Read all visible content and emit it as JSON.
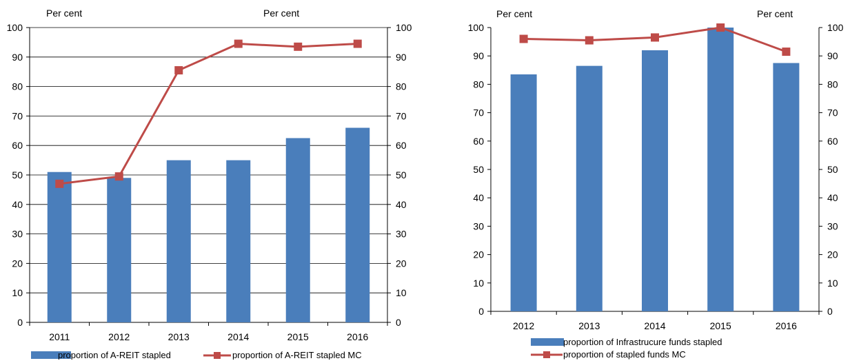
{
  "colors": {
    "bar": "#4a7ebb",
    "line": "#be4b48",
    "axis": "#000000",
    "grid": "#000000"
  },
  "chart_data": [
    {
      "type": "bar+line",
      "categories": [
        "2011",
        "2012",
        "2013",
        "2014",
        "2015",
        "2016"
      ],
      "series": [
        {
          "name": "proportion of A-REIT stapled",
          "type": "bar",
          "axis": "left",
          "values": [
            51,
            49,
            55,
            55,
            62.5,
            66
          ]
        },
        {
          "name": "proportion of A-REIT stapled MC",
          "type": "line",
          "axis": "right",
          "values": [
            47,
            49.5,
            85.5,
            94.5,
            93.5,
            94.5
          ]
        }
      ],
      "ylim": [
        0,
        100
      ],
      "y2lim": [
        0,
        100
      ],
      "yticks": [
        "0",
        "10",
        "20",
        "30",
        "40",
        "50",
        "60",
        "70",
        "80",
        "90",
        "100"
      ],
      "y_unit_left": "Per cent",
      "y_unit_right": "Per cent",
      "grid": true,
      "legend_position": "bottom"
    },
    {
      "type": "bar+line",
      "categories": [
        "2012",
        "2013",
        "2014",
        "2015",
        "2016"
      ],
      "series": [
        {
          "name": "proportion of Infrastrucure funds stapled",
          "type": "bar",
          "axis": "left",
          "values": [
            83.5,
            86.5,
            92,
            100,
            87.5
          ]
        },
        {
          "name": "proportion of stapled funds MC",
          "type": "line",
          "axis": "right",
          "values": [
            96,
            95.5,
            96.5,
            100,
            91.5
          ]
        }
      ],
      "ylim": [
        0,
        100
      ],
      "y2lim": [
        0,
        100
      ],
      "yticks": [
        "0",
        "10",
        "20",
        "30",
        "40",
        "50",
        "60",
        "70",
        "80",
        "90",
        "100"
      ],
      "y_unit_left": "Per cent",
      "y_unit_right": "Per cent",
      "grid": false,
      "legend_position": "bottom"
    }
  ]
}
